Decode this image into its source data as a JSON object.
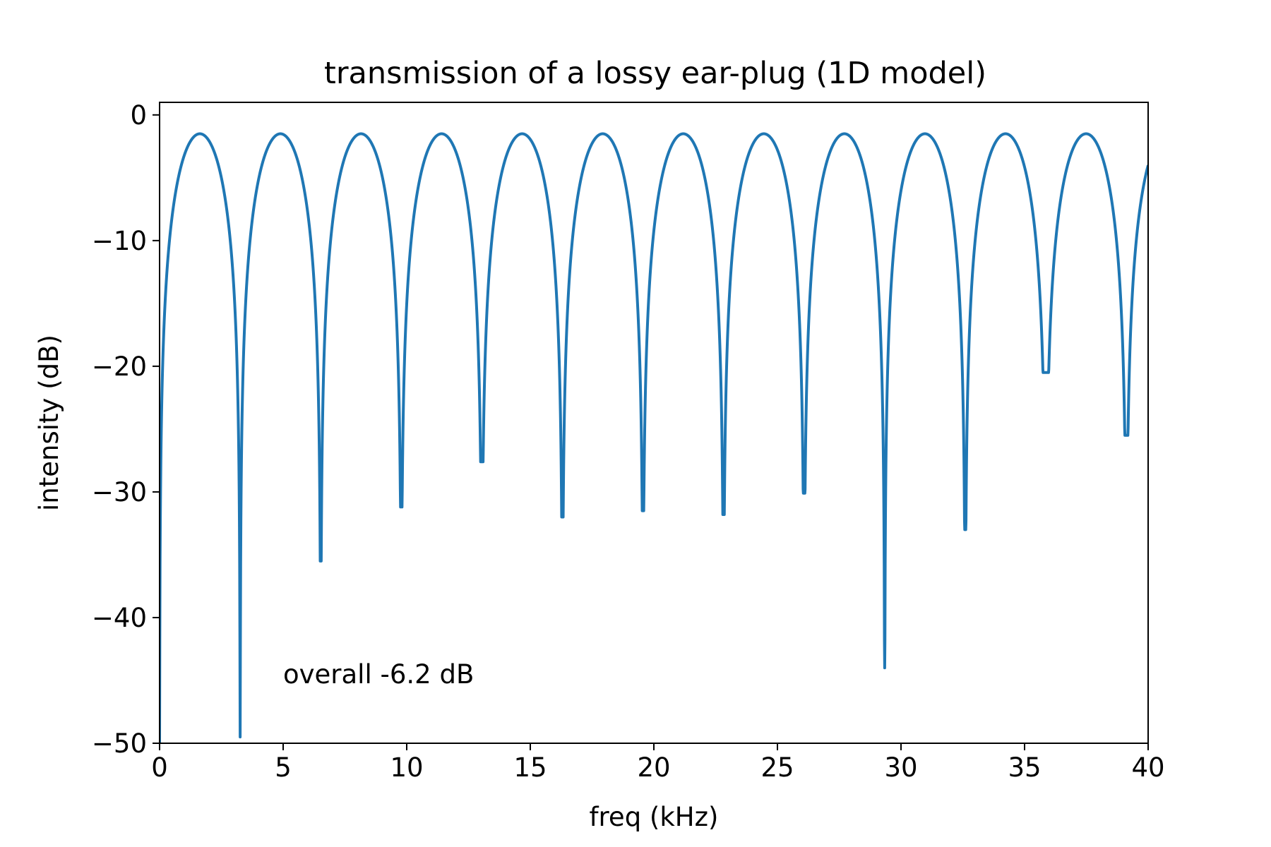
{
  "chart_data": {
    "type": "line",
    "title": "transmission of a lossy ear-plug (1D model)",
    "xlabel": "freq (kHz)",
    "ylabel": "intensity (dB)",
    "xlim": [
      0,
      40
    ],
    "ylim": [
      -50,
      1
    ],
    "xticks": [
      0,
      5,
      10,
      15,
      20,
      25,
      30,
      35,
      40
    ],
    "xtick_labels": [
      "0",
      "5",
      "10",
      "15",
      "20",
      "25",
      "30",
      "35",
      "40"
    ],
    "yticks": [
      0,
      -10,
      -20,
      -30,
      -40,
      -50
    ],
    "ytick_labels": [
      "0",
      "−10",
      "−20",
      "−30",
      "−40",
      "−50"
    ],
    "grid": false,
    "legend": null,
    "color": "#1f77b4",
    "series": [
      {
        "peak_db": -1.5,
        "period_khz": 3.26,
        "notches": [
          {
            "freq": 0.0,
            "depth": -50.0
          },
          {
            "freq": 3.26,
            "depth": -49.5
          },
          {
            "freq": 6.52,
            "depth": -35.5
          },
          {
            "freq": 9.78,
            "depth": -31.2
          },
          {
            "freq": 13.04,
            "depth": -27.6
          },
          {
            "freq": 16.3,
            "depth": -32.0
          },
          {
            "freq": 19.56,
            "depth": -31.5
          },
          {
            "freq": 22.82,
            "depth": -31.8
          },
          {
            "freq": 26.08,
            "depth": -30.1
          },
          {
            "freq": 29.34,
            "depth": -44.0
          },
          {
            "freq": 32.6,
            "depth": -33.0
          },
          {
            "freq": 35.86,
            "depth": -20.5
          },
          {
            "freq": 39.12,
            "depth": -25.5
          }
        ]
      }
    ],
    "annotations": [
      {
        "text": "overall -6.2 dB",
        "x": 5.0,
        "y": -44.5
      }
    ]
  }
}
